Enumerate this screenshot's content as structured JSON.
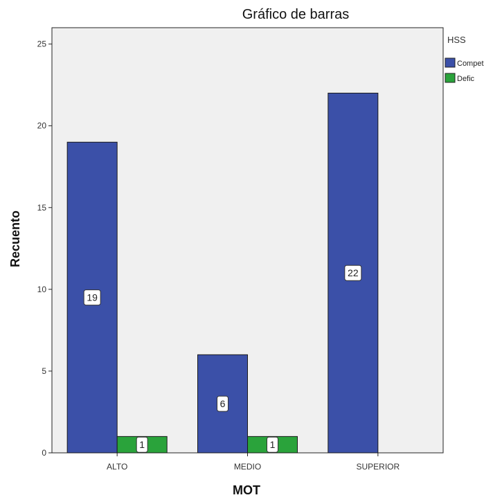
{
  "chart_data": {
    "type": "bar",
    "title": "Gráfico de barras",
    "xlabel": "MOT",
    "ylabel": "Recuento",
    "categories": [
      "ALTO",
      "MEDIO",
      "SUPERIOR"
    ],
    "series": [
      {
        "name": "Compet",
        "values": [
          19,
          6,
          22
        ],
        "color": "#3b50a8"
      },
      {
        "name": "Defic",
        "values": [
          1,
          1,
          null
        ],
        "color": "#2aa33b"
      }
    ],
    "ylim": [
      0,
      26
    ],
    "yticks": [
      0,
      5,
      10,
      15,
      20,
      25
    ],
    "legend": {
      "title": "HSS",
      "position": "right"
    },
    "grid": false,
    "background": "#f0f0f0"
  }
}
